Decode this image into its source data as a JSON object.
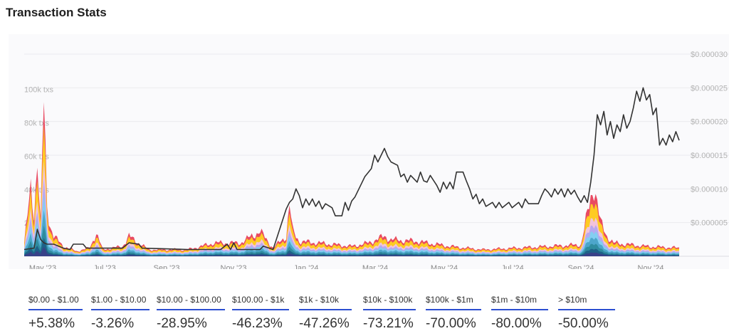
{
  "header": {
    "title": "Transaction Stats"
  },
  "chart_data": {
    "type": "area",
    "x_tick_labels": [
      "May '23",
      "Jul '23",
      "Sep '23",
      "Nov '23",
      "Jan '24",
      "Mar '24",
      "May '24",
      "Jul '24",
      "Sep '24",
      "Nov '24"
    ],
    "left_axis": {
      "ticks": [
        "20k",
        "40k txs",
        "60k txs",
        "80k txs",
        "100k txs"
      ],
      "ylim": [
        0,
        105000
      ]
    },
    "right_axis": {
      "ticks": [
        "$0.000005",
        "$0.000010",
        "$0.000015",
        "$0.000020",
        "$0.000025",
        "$0.000030"
      ],
      "ylim": [
        0,
        3e-05
      ]
    },
    "grid": true,
    "series_colors": [
      "#e8405a",
      "#ffd21f",
      "#f1c2e6",
      "#b3a6f0",
      "#7fd0f0",
      "#4aa3c8",
      "#2d8a9c",
      "#1e5f87",
      "#3a3f88"
    ],
    "price_series": {
      "color": "#333333",
      "points": [
        [
          0,
          1e-06
        ],
        [
          3,
          1.2e-06
        ],
        [
          4,
          4e-06
        ],
        [
          5,
          2.5e-06
        ],
        [
          6,
          2e-06
        ],
        [
          7,
          1.8e-06
        ],
        [
          9,
          1.8e-06
        ],
        [
          12,
          1.2e-06
        ],
        [
          14,
          1e-06
        ],
        [
          15,
          1.8e-06
        ],
        [
          18,
          1.8e-06
        ],
        [
          19,
          1.2e-06
        ],
        [
          30,
          1.2e-06
        ],
        [
          32,
          2e-06
        ],
        [
          35,
          1.8e-06
        ],
        [
          36,
          1.2e-06
        ],
        [
          50,
          1e-06
        ],
        [
          60,
          1e-06
        ],
        [
          62,
          1.8e-06
        ],
        [
          63,
          1e-06
        ],
        [
          64,
          2e-06
        ],
        [
          65,
          1e-06
        ],
        [
          72,
          1e-06
        ],
        [
          73,
          1.5e-06
        ],
        [
          76,
          1e-06
        ],
        [
          80,
          7e-06
        ],
        [
          81,
          8e-06
        ],
        [
          82,
          8.5e-06
        ],
        [
          83,
          1e-05
        ],
        [
          84,
          9e-06
        ],
        [
          85,
          7.2e-06
        ],
        [
          86,
          8.5e-06
        ],
        [
          87,
          7.6e-06
        ],
        [
          88,
          8.5e-06
        ],
        [
          89,
          7.4e-06
        ],
        [
          90,
          8.2e-06
        ],
        [
          91,
          7e-06
        ],
        [
          92,
          7.8e-06
        ],
        [
          94,
          7.2e-06
        ],
        [
          95,
          6e-06
        ],
        [
          97,
          6e-06
        ],
        [
          98,
          8e-06
        ],
        [
          99,
          6.8e-06
        ],
        [
          100,
          8.2e-06
        ],
        [
          101,
          8.8e-06
        ],
        [
          103,
          1.08e-05
        ],
        [
          104,
          1.18e-05
        ],
        [
          106,
          1.3e-05
        ],
        [
          107,
          1.5e-05
        ],
        [
          108,
          1.4e-05
        ],
        [
          110,
          1.6e-05
        ],
        [
          111,
          1.48e-05
        ],
        [
          112,
          1.4e-05
        ],
        [
          114,
          1.35e-05
        ],
        [
          115,
          1.18e-05
        ],
        [
          116,
          1.22e-05
        ],
        [
          117,
          1.1e-05
        ],
        [
          118,
          1.2e-05
        ],
        [
          120,
          1.1e-05
        ],
        [
          121,
          1.25e-05
        ],
        [
          122,
          1.12e-05
        ],
        [
          123,
          1.1e-05
        ],
        [
          124,
          1.2e-05
        ],
        [
          126,
          1.05e-05
        ],
        [
          127,
          9.5e-06
        ],
        [
          128,
          1.1e-05
        ],
        [
          129,
          1e-05
        ],
        [
          130,
          1.1e-05
        ],
        [
          131,
          1e-05
        ],
        [
          132,
          1.25e-05
        ],
        [
          134,
          1.25e-05
        ],
        [
          135,
          1.12e-05
        ],
        [
          136,
          1e-05
        ],
        [
          137,
          8.5e-06
        ],
        [
          138,
          9.2e-06
        ],
        [
          139,
          7.8e-06
        ],
        [
          140,
          8.5e-06
        ],
        [
          141,
          7.4e-06
        ],
        [
          143,
          8e-06
        ],
        [
          144,
          7.2e-06
        ],
        [
          145,
          8e-06
        ],
        [
          146,
          7.2e-06
        ],
        [
          148,
          8e-06
        ],
        [
          149,
          7.2e-06
        ],
        [
          151,
          8e-06
        ],
        [
          152,
          7.2e-06
        ],
        [
          153,
          8.5e-06
        ],
        [
          154,
          7.8e-06
        ],
        [
          157,
          7.8e-06
        ],
        [
          158,
          9e-06
        ],
        [
          159,
          1e-05
        ],
        [
          160,
          9.5e-06
        ],
        [
          161,
          8.8e-06
        ],
        [
          162,
          1e-05
        ],
        [
          163,
          9.2e-06
        ],
        [
          164,
          1e-05
        ],
        [
          165,
          8.8e-06
        ],
        [
          166,
          1e-05
        ],
        [
          167,
          9.2e-06
        ],
        [
          168,
          9.8e-06
        ],
        [
          169,
          8.8e-06
        ],
        [
          170,
          8e-06
        ],
        [
          171,
          9e-06
        ],
        [
          172,
          8e-06
        ],
        [
          173,
          1.1e-05
        ],
        [
          174,
          1.5e-05
        ],
        [
          175,
          2.1e-05
        ],
        [
          176,
          1.95e-05
        ],
        [
          177,
          2.15e-05
        ],
        [
          178,
          1.8e-05
        ],
        [
          179,
          2e-05
        ],
        [
          180,
          1.75e-05
        ],
        [
          181,
          1.95e-05
        ],
        [
          182,
          1.85e-05
        ],
        [
          183,
          2.1e-05
        ],
        [
          184,
          1.9e-05
        ],
        [
          185,
          2e-05
        ],
        [
          186,
          2.2e-05
        ],
        [
          187,
          2.45e-05
        ],
        [
          188,
          2.3e-05
        ],
        [
          189,
          2.5e-05
        ],
        [
          190,
          2.32e-05
        ],
        [
          191,
          2.4e-05
        ],
        [
          192,
          2.1e-05
        ],
        [
          193,
          2.2e-05
        ],
        [
          194,
          1.65e-05
        ],
        [
          195,
          1.75e-05
        ],
        [
          196,
          1.65e-05
        ],
        [
          197,
          1.8e-05
        ],
        [
          198,
          1.7e-05
        ],
        [
          199,
          1.85e-05
        ],
        [
          200,
          1.72e-05
        ]
      ]
    },
    "tx_total_peaks": [
      [
        0,
        8000
      ],
      [
        2,
        40000
      ],
      [
        3,
        25000
      ],
      [
        4,
        60000
      ],
      [
        5,
        20000
      ],
      [
        6,
        93000
      ],
      [
        7,
        30000
      ],
      [
        8,
        18000
      ],
      [
        9,
        12000
      ],
      [
        12,
        6000
      ],
      [
        16,
        3000
      ],
      [
        20,
        5000
      ],
      [
        22,
        14000
      ],
      [
        24,
        4000
      ],
      [
        30,
        6000
      ],
      [
        32,
        12000
      ],
      [
        38,
        4000
      ],
      [
        50,
        4000
      ],
      [
        58,
        8000
      ],
      [
        66,
        8000
      ],
      [
        72,
        15000
      ],
      [
        76,
        5000
      ],
      [
        80,
        12000
      ],
      [
        81,
        31000
      ],
      [
        82,
        15000
      ],
      [
        84,
        9000
      ],
      [
        90,
        8000
      ],
      [
        100,
        6000
      ],
      [
        105,
        8000
      ],
      [
        110,
        12000
      ],
      [
        112,
        10000
      ],
      [
        120,
        9000
      ],
      [
        130,
        6000
      ],
      [
        140,
        4000
      ],
      [
        150,
        5000
      ],
      [
        160,
        6000
      ],
      [
        170,
        7000
      ],
      [
        174,
        44000
      ],
      [
        176,
        20000
      ],
      [
        178,
        12000
      ],
      [
        180,
        8000
      ],
      [
        190,
        6000
      ],
      [
        200,
        5000
      ]
    ]
  },
  "stats": [
    {
      "range": "$0.00 - $1.00",
      "change": "+5.38%"
    },
    {
      "range": "$1.00 - $10.00",
      "change": "-3.26%"
    },
    {
      "range": "$10.00 - $100.00",
      "change": "-28.95%"
    },
    {
      "range": "$100.00 - $1k",
      "change": "-46.23%"
    },
    {
      "range": "$1k - $10k",
      "change": "-47.26%"
    },
    {
      "range": "$10k - $100k",
      "change": "-73.21%"
    },
    {
      "range": "$100k - $1m",
      "change": "-70.00%"
    },
    {
      "range": "$1m - $10m",
      "change": "-80.00%"
    },
    {
      "range": "> $10m",
      "change": "-50.00%"
    }
  ]
}
